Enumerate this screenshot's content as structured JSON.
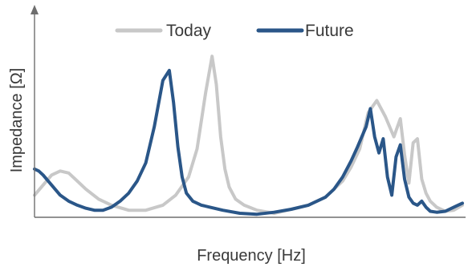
{
  "chart_data": {
    "type": "line",
    "title": "",
    "xlabel": "Frequency [Hz]",
    "ylabel": "Impedance [Ω]",
    "x_ticks_shown": false,
    "y_ticks_shown": false,
    "grid": false,
    "legend_position": "top",
    "xlim": [
      0,
      100
    ],
    "ylim": [
      0,
      100
    ],
    "series": [
      {
        "name": "Today",
        "color": "#c8c8c8",
        "x": [
          0,
          2,
          4,
          6,
          8,
          10,
          12,
          15,
          18,
          22,
          26,
          30,
          33,
          36,
          38,
          40,
          41.5,
          42.5,
          43.5,
          44.5,
          45.5,
          47,
          49,
          52,
          56,
          60,
          64,
          68,
          72,
          74,
          76,
          78,
          80,
          82,
          84,
          85.5,
          86.5,
          87.5,
          88.5,
          89.5,
          90.5,
          91.5,
          92.5,
          94,
          96,
          98,
          100
        ],
        "values": [
          11,
          16,
          21,
          23,
          22,
          18,
          14,
          9,
          6,
          3.5,
          3.5,
          6,
          11,
          20,
          34,
          62,
          80,
          66,
          40,
          24,
          15,
          9,
          6,
          3.5,
          2,
          4,
          6,
          10,
          18,
          25,
          34,
          52,
          58,
          50,
          40,
          49,
          31,
          17,
          37,
          39,
          19,
          12,
          8,
          5,
          3,
          3.5,
          6
        ]
      },
      {
        "name": "Future",
        "color": "#2a5688",
        "x": [
          0,
          1,
          2,
          4,
          6,
          8,
          10,
          12,
          14,
          16,
          18,
          20,
          22,
          24,
          26,
          28,
          30,
          31.5,
          32.5,
          33.5,
          34.5,
          35.5,
          37,
          39,
          41,
          44,
          48,
          52,
          56,
          60,
          64,
          68,
          70,
          72,
          74,
          75.5,
          76.5,
          77.5,
          78.5,
          79.5,
          80.5,
          81.5,
          82.5,
          83.5,
          84.5,
          85.5,
          86.5,
          87.5,
          88.5,
          89.5,
          90.5,
          91.5,
          92.5,
          94,
          96,
          98,
          100
        ],
        "values": [
          24,
          23,
          21,
          16,
          11,
          8,
          6,
          4.5,
          3.5,
          3.5,
          5,
          8,
          12,
          18,
          27,
          45,
          68,
          73,
          57,
          35,
          20,
          12,
          8,
          6,
          5,
          3.5,
          2,
          1.5,
          2.5,
          4,
          6,
          10,
          14,
          20,
          28,
          35,
          40,
          45,
          54,
          40,
          32,
          39,
          20,
          11,
          30,
          36,
          19,
          10,
          7,
          6,
          8,
          5,
          3,
          2.5,
          3,
          5,
          7
        ]
      }
    ]
  }
}
